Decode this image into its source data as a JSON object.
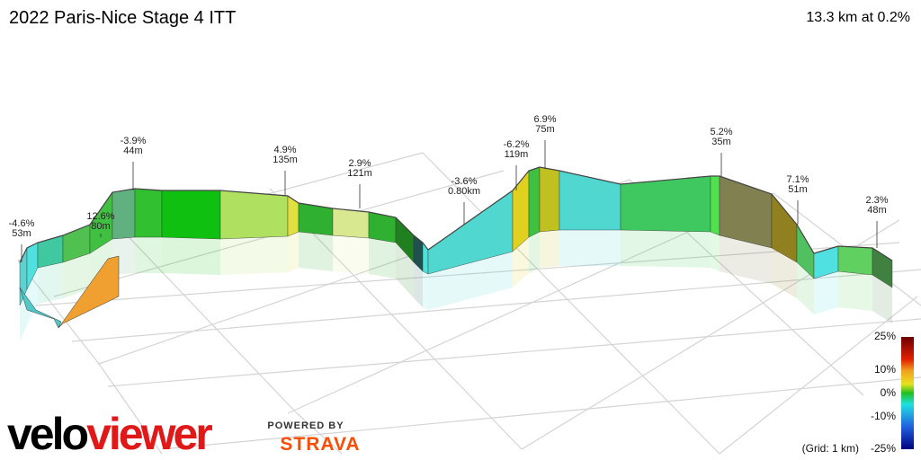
{
  "header": {
    "title": "2022 Paris-Nice Stage 4 ITT",
    "summary": "13.3 km at 0.2%"
  },
  "annotations": [
    {
      "grade": "-4.6%",
      "length": "53m"
    },
    {
      "grade": "12.6%",
      "length": "80m"
    },
    {
      "grade": "-3.9%",
      "length": "44m"
    },
    {
      "grade": "4.9%",
      "length": "135m"
    },
    {
      "grade": "2.9%",
      "length": "121m"
    },
    {
      "grade": "-3.6%",
      "length": "0.80km"
    },
    {
      "grade": "-6.2%",
      "length": "119m"
    },
    {
      "grade": "6.9%",
      "length": "75m"
    },
    {
      "grade": "5.2%",
      "length": "35m"
    },
    {
      "grade": "7.1%",
      "length": "51m"
    },
    {
      "grade": "2.3%",
      "length": "48m"
    }
  ],
  "legend": {
    "labels": [
      "25%",
      "10%",
      "0%",
      "-10%",
      "-25%"
    ],
    "grid_note": "(Grid: 1 km)"
  },
  "logo": {
    "parts": [
      "velo",
      "viewer"
    ],
    "powered_by": "POWERED BY",
    "strava": "STRAVA"
  }
}
